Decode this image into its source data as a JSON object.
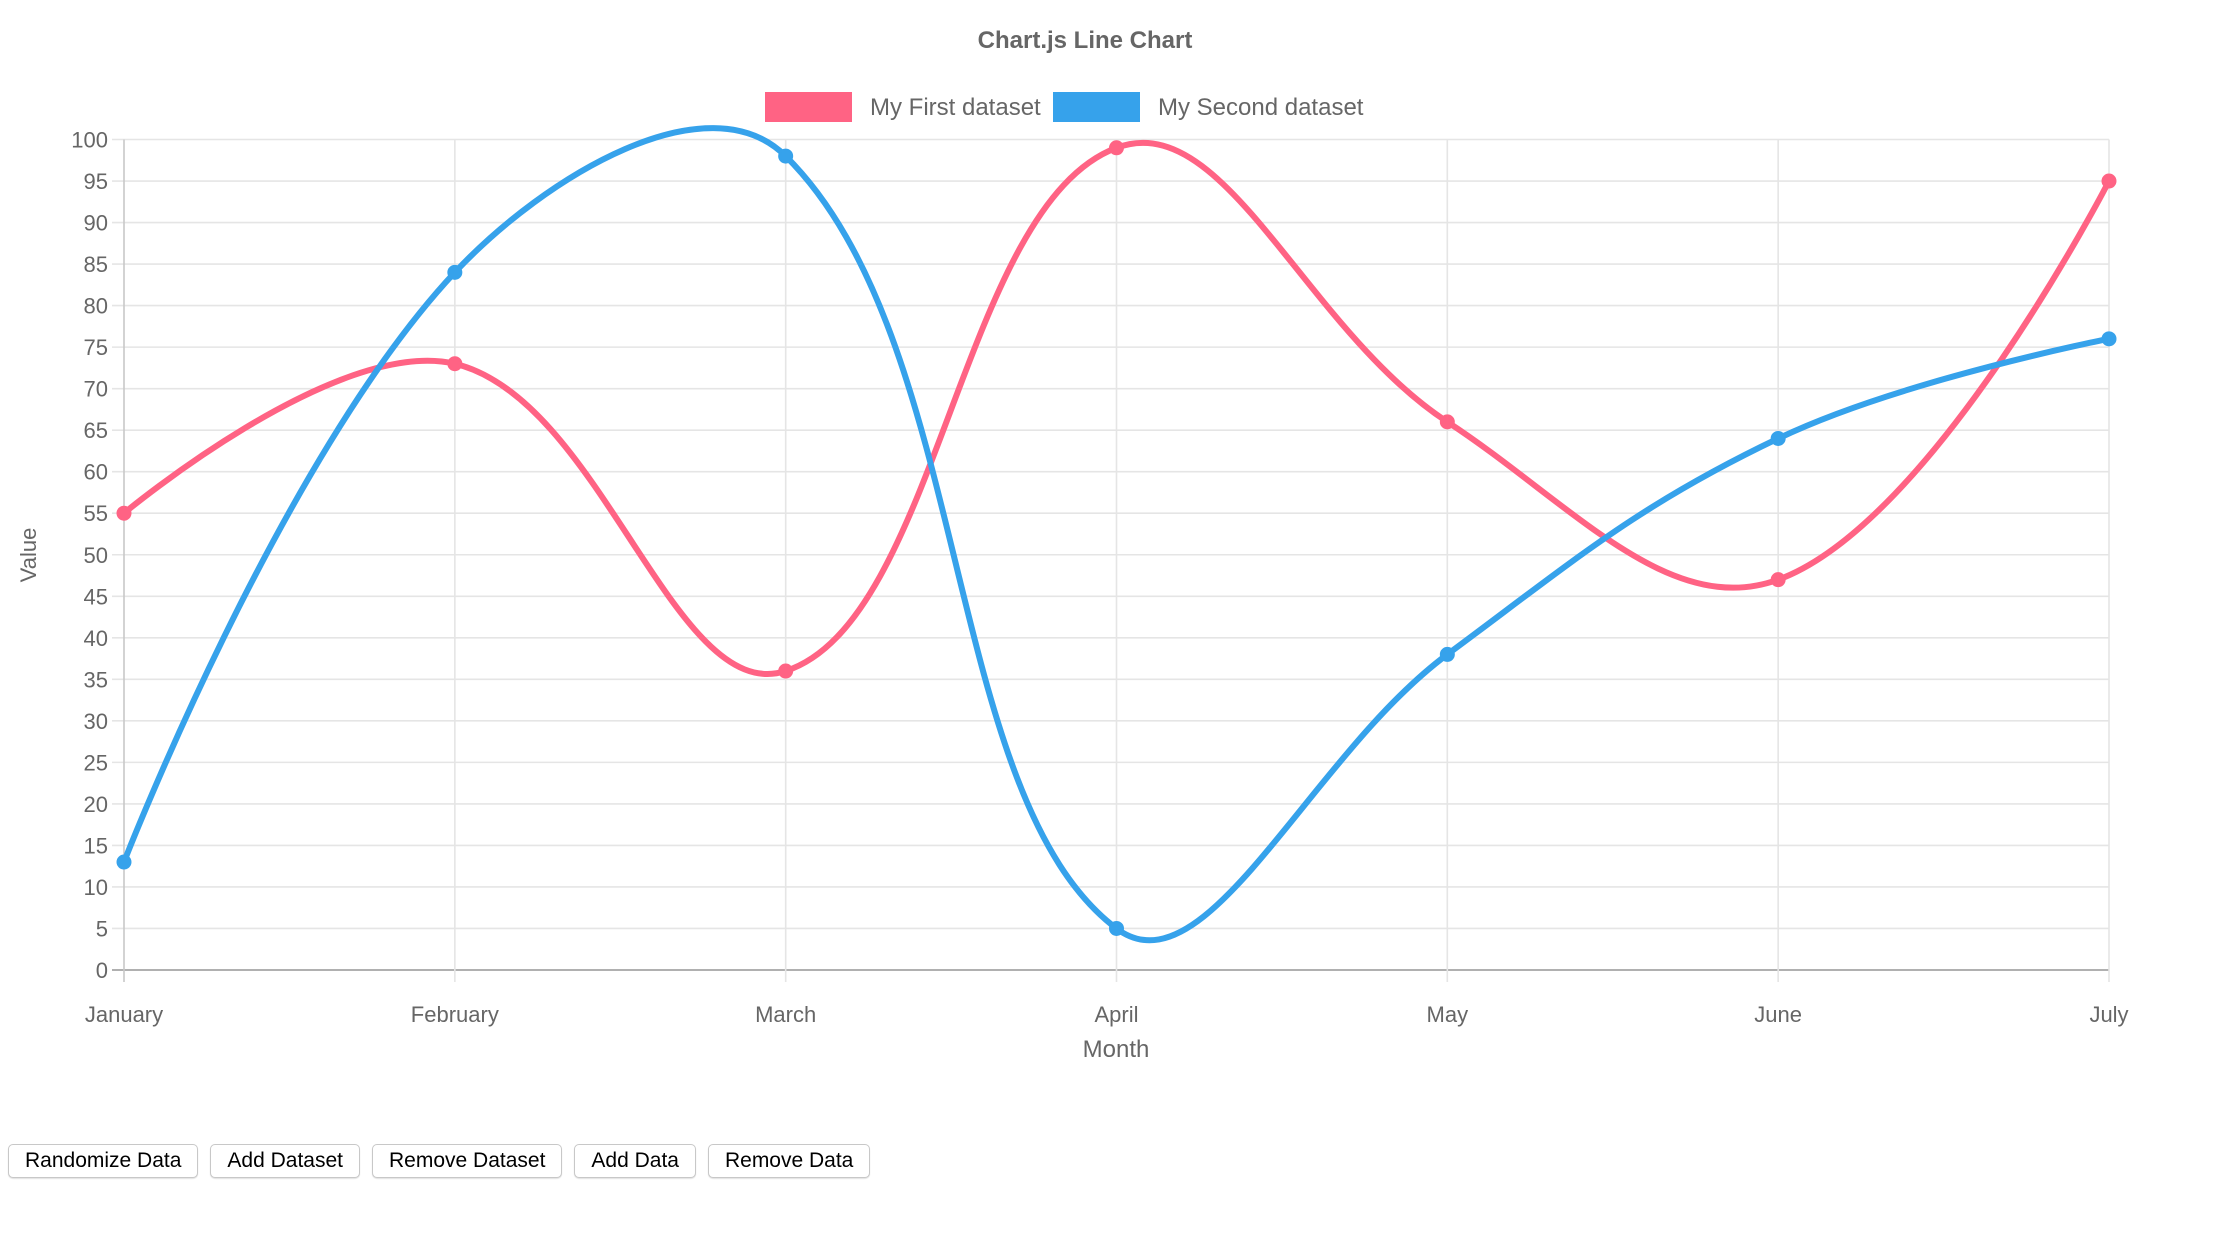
{
  "chart_data": {
    "type": "line",
    "title": "Chart.js Line Chart",
    "xlabel": "Month",
    "ylabel": "Value",
    "categories": [
      "January",
      "February",
      "March",
      "April",
      "May",
      "June",
      "July"
    ],
    "series": [
      {
        "name": "My First dataset",
        "color": "#ff6384",
        "values": [
          55,
          73,
          36,
          99,
          66,
          47,
          95
        ]
      },
      {
        "name": "My Second dataset",
        "color": "#36a2eb",
        "values": [
          13,
          84,
          98,
          5,
          38,
          64,
          76
        ]
      }
    ],
    "ylim": [
      0,
      100
    ],
    "ytick_step": 5,
    "yticks": [
      0,
      5,
      10,
      15,
      20,
      25,
      30,
      35,
      40,
      45,
      50,
      55,
      60,
      65,
      70,
      75,
      80,
      85,
      90,
      95,
      100
    ],
    "grid": true,
    "legend_position": "top",
    "interpolation": "smooth"
  },
  "colors": {
    "text": "#666666",
    "grid": "#e5e5e5",
    "axis": "#bdbdbd",
    "first_dataset": "#ff6384",
    "second_dataset": "#36a2eb"
  },
  "toolbar": {
    "buttons": [
      {
        "id": "randomize-data",
        "label": "Randomize Data"
      },
      {
        "id": "add-dataset",
        "label": "Add Dataset"
      },
      {
        "id": "remove-dataset",
        "label": "Remove Dataset"
      },
      {
        "id": "add-data",
        "label": "Add Data"
      },
      {
        "id": "remove-data",
        "label": "Remove Data"
      }
    ]
  }
}
